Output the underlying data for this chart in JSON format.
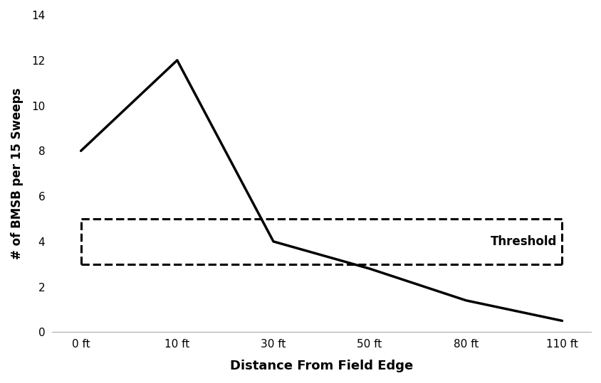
{
  "x_labels": [
    "0 ft",
    "10 ft",
    "30 ft",
    "50 ft",
    "80 ft",
    "110 ft"
  ],
  "x_indices": [
    0,
    1,
    2,
    3,
    4,
    5
  ],
  "y_values": [
    8,
    12,
    4,
    2.8,
    1.4,
    0.5
  ],
  "line_color": "#000000",
  "line_width": 2.5,
  "threshold_upper": 5,
  "threshold_lower": 3,
  "threshold_label": "Threshold",
  "xlabel": "Distance From Field Edge",
  "ylabel": "# of BMSB per 15 Sweeps",
  "ylim": [
    0,
    14
  ],
  "yticks": [
    0,
    2,
    4,
    6,
    8,
    10,
    12,
    14
  ],
  "background_color": "#ffffff",
  "xlabel_fontsize": 13,
  "ylabel_fontsize": 12,
  "tick_fontsize": 11,
  "threshold_fontsize": 12,
  "dashed_color": "#000000",
  "dashed_linewidth": 2.2
}
